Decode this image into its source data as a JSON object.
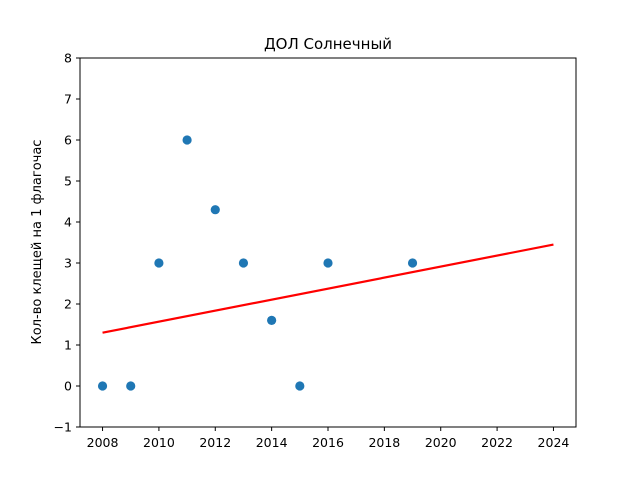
{
  "chart_data": {
    "type": "scatter",
    "title": "ДОЛ Солнечный",
    "xlabel": "",
    "ylabel": "Кол-во клещей на 1 флагочас",
    "xlim": [
      2007.2,
      2024.8
    ],
    "ylim": [
      -1,
      8
    ],
    "xticks": [
      "2008",
      "2010",
      "2012",
      "2014",
      "2016",
      "2018",
      "2020",
      "2022",
      "2024"
    ],
    "yticks": [
      "−1",
      "0",
      "1",
      "2",
      "3",
      "4",
      "5",
      "6",
      "7",
      "8"
    ],
    "grid": false,
    "points": {
      "x": [
        2008,
        2009,
        2010,
        2011,
        2012,
        2013,
        2014,
        2015,
        2016,
        2019
      ],
      "y": [
        0,
        0,
        3,
        6,
        4.3,
        3,
        1.6,
        0,
        3,
        3
      ],
      "color": "#1f77b4"
    },
    "trendline": {
      "x": [
        2008,
        2024
      ],
      "y": [
        1.3,
        3.45
      ],
      "color": "#ff0000"
    }
  }
}
